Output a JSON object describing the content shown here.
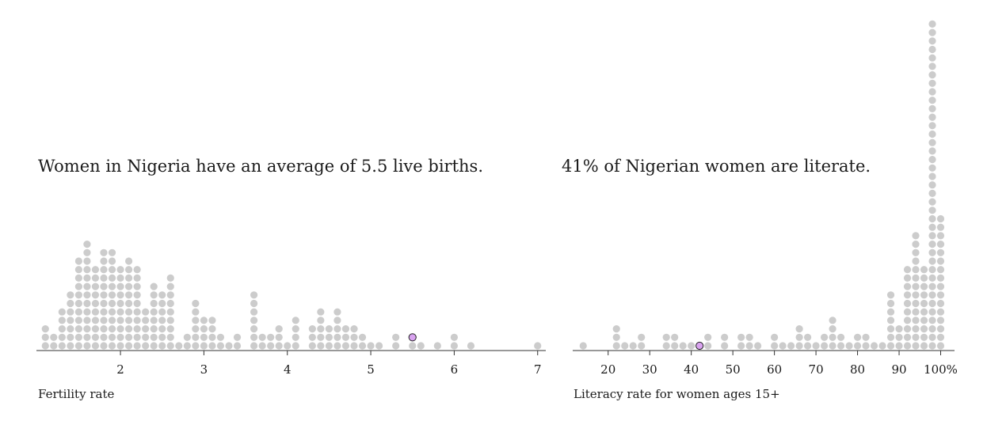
{
  "chart_data": [
    {
      "type": "dot-histogram",
      "headline": "Women in Nigeria have an average of 5.5 live births.",
      "xlabel": "Fertility rate",
      "xlim": [
        1.05,
        7.05
      ],
      "ticks": [
        "2",
        "3",
        "4",
        "5",
        "6",
        "7"
      ],
      "tick_values": [
        2,
        3,
        4,
        5,
        6,
        7
      ],
      "highlight": {
        "label": "Nigeria",
        "x": 5.5,
        "stack": 1,
        "color": "#d9a3f0"
      },
      "bins": [
        {
          "x": 1.1,
          "count": 3
        },
        {
          "x": 1.2,
          "count": 2
        },
        {
          "x": 1.3,
          "count": 5
        },
        {
          "x": 1.4,
          "count": 7
        },
        {
          "x": 1.5,
          "count": 11
        },
        {
          "x": 1.6,
          "count": 13
        },
        {
          "x": 1.7,
          "count": 10
        },
        {
          "x": 1.8,
          "count": 12
        },
        {
          "x": 1.9,
          "count": 12
        },
        {
          "x": 2.0,
          "count": 10
        },
        {
          "x": 2.1,
          "count": 11
        },
        {
          "x": 2.2,
          "count": 10
        },
        {
          "x": 2.3,
          "count": 5
        },
        {
          "x": 2.4,
          "count": 8
        },
        {
          "x": 2.5,
          "count": 7
        },
        {
          "x": 2.6,
          "count": 9
        },
        {
          "x": 2.7,
          "count": 1
        },
        {
          "x": 2.8,
          "count": 2
        },
        {
          "x": 2.9,
          "count": 6
        },
        {
          "x": 3.0,
          "count": 4
        },
        {
          "x": 3.1,
          "count": 4
        },
        {
          "x": 3.2,
          "count": 2
        },
        {
          "x": 3.3,
          "count": 1
        },
        {
          "x": 3.4,
          "count": 2
        },
        {
          "x": 3.6,
          "count": 7
        },
        {
          "x": 3.7,
          "count": 2
        },
        {
          "x": 3.8,
          "count": 2
        },
        {
          "x": 3.9,
          "count": 3
        },
        {
          "x": 4.0,
          "count": 1
        },
        {
          "x": 4.1,
          "count": 4
        },
        {
          "x": 4.3,
          "count": 3
        },
        {
          "x": 4.4,
          "count": 5
        },
        {
          "x": 4.5,
          "count": 3
        },
        {
          "x": 4.6,
          "count": 5
        },
        {
          "x": 4.7,
          "count": 3
        },
        {
          "x": 4.8,
          "count": 3
        },
        {
          "x": 4.9,
          "count": 2
        },
        {
          "x": 5.0,
          "count": 1
        },
        {
          "x": 5.1,
          "count": 1
        },
        {
          "x": 5.3,
          "count": 2
        },
        {
          "x": 5.5,
          "count": 1
        },
        {
          "x": 5.6,
          "count": 1
        },
        {
          "x": 5.8,
          "count": 1
        },
        {
          "x": 6.0,
          "count": 2
        },
        {
          "x": 6.2,
          "count": 1
        },
        {
          "x": 7.0,
          "count": 1
        }
      ]
    },
    {
      "type": "dot-histogram",
      "headline": "41% of Nigerian women are literate.",
      "xlabel": "Literacy rate for women ages 15+",
      "xlim": [
        13,
        102
      ],
      "ticks": [
        "20",
        "30",
        "40",
        "50",
        "60",
        "70",
        "80",
        "90",
        "100%"
      ],
      "tick_values": [
        20,
        30,
        40,
        50,
        60,
        70,
        80,
        90,
        100
      ],
      "highlight": {
        "label": "Nigeria",
        "x": 42,
        "stack": 0,
        "color": "#d9a3f0"
      },
      "bins": [
        {
          "x": 14,
          "count": 1
        },
        {
          "x": 22,
          "count": 3
        },
        {
          "x": 24,
          "count": 1
        },
        {
          "x": 26,
          "count": 1
        },
        {
          "x": 28,
          "count": 2
        },
        {
          "x": 34,
          "count": 2
        },
        {
          "x": 36,
          "count": 2
        },
        {
          "x": 38,
          "count": 1
        },
        {
          "x": 40,
          "count": 1
        },
        {
          "x": 42,
          "count": 0
        },
        {
          "x": 44,
          "count": 2
        },
        {
          "x": 48,
          "count": 2
        },
        {
          "x": 52,
          "count": 2
        },
        {
          "x": 54,
          "count": 2
        },
        {
          "x": 56,
          "count": 1
        },
        {
          "x": 60,
          "count": 2
        },
        {
          "x": 62,
          "count": 1
        },
        {
          "x": 64,
          "count": 1
        },
        {
          "x": 66,
          "count": 3
        },
        {
          "x": 68,
          "count": 2
        },
        {
          "x": 70,
          "count": 1
        },
        {
          "x": 72,
          "count": 2
        },
        {
          "x": 74,
          "count": 4
        },
        {
          "x": 76,
          "count": 2
        },
        {
          "x": 78,
          "count": 1
        },
        {
          "x": 80,
          "count": 2
        },
        {
          "x": 82,
          "count": 2
        },
        {
          "x": 84,
          "count": 1
        },
        {
          "x": 86,
          "count": 1
        },
        {
          "x": 88,
          "count": 7
        },
        {
          "x": 90,
          "count": 3
        },
        {
          "x": 92,
          "count": 10
        },
        {
          "x": 94,
          "count": 14
        },
        {
          "x": 96,
          "count": 10
        },
        {
          "x": 98,
          "count": 39
        },
        {
          "x": 100,
          "count": 16
        }
      ]
    }
  ]
}
